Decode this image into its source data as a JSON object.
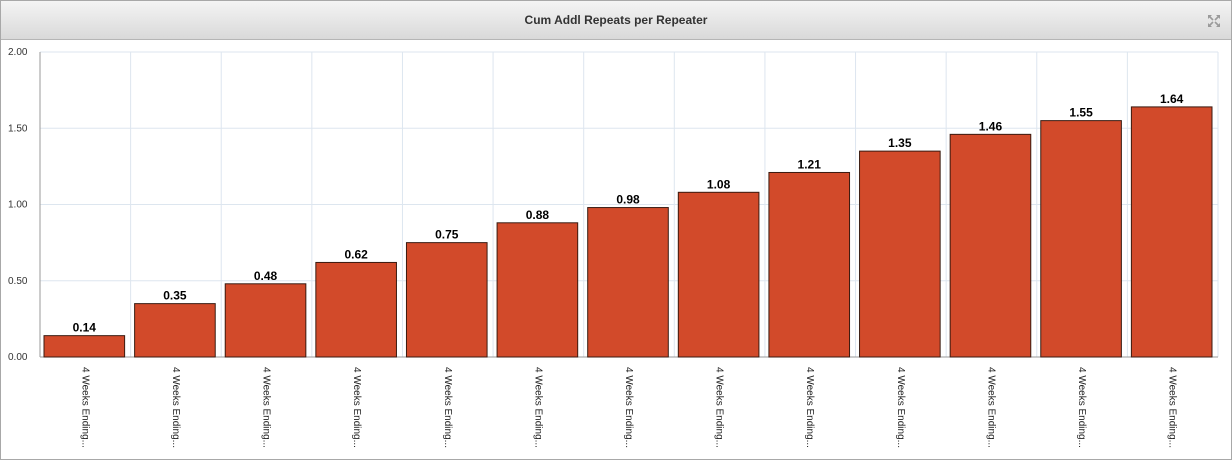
{
  "panel": {
    "title": "Cum Addl Repeats per Repeater",
    "expand_icon": "expand-arrows-icon"
  },
  "chart_data": {
    "type": "bar",
    "title": "Cum Addl Repeats per Repeater",
    "xlabel": "",
    "ylabel": "",
    "ylim": [
      0,
      2
    ],
    "yticks": [
      "0.00",
      "0.50",
      "1.00",
      "1.50",
      "2.00"
    ],
    "categories": [
      "4 Weeks Ending...",
      "4 Weeks Ending...",
      "4 Weeks Ending...",
      "4 Weeks Ending...",
      "4 Weeks Ending...",
      "4 Weeks Ending...",
      "4 Weeks Ending...",
      "4 Weeks Ending...",
      "4 Weeks Ending...",
      "4 Weeks Ending...",
      "4 Weeks Ending...",
      "4 Weeks Ending...",
      "4 Weeks Ending..."
    ],
    "values": [
      0.14,
      0.35,
      0.48,
      0.62,
      0.75,
      0.88,
      0.98,
      1.08,
      1.21,
      1.35,
      1.46,
      1.55,
      1.64
    ],
    "value_labels": [
      "0.14",
      "0.35",
      "0.48",
      "0.62",
      "0.75",
      "0.88",
      "0.98",
      "1.08",
      "1.21",
      "1.35",
      "1.46",
      "1.55",
      "1.64"
    ],
    "bar_color": "#d24a2a",
    "grid": true
  }
}
